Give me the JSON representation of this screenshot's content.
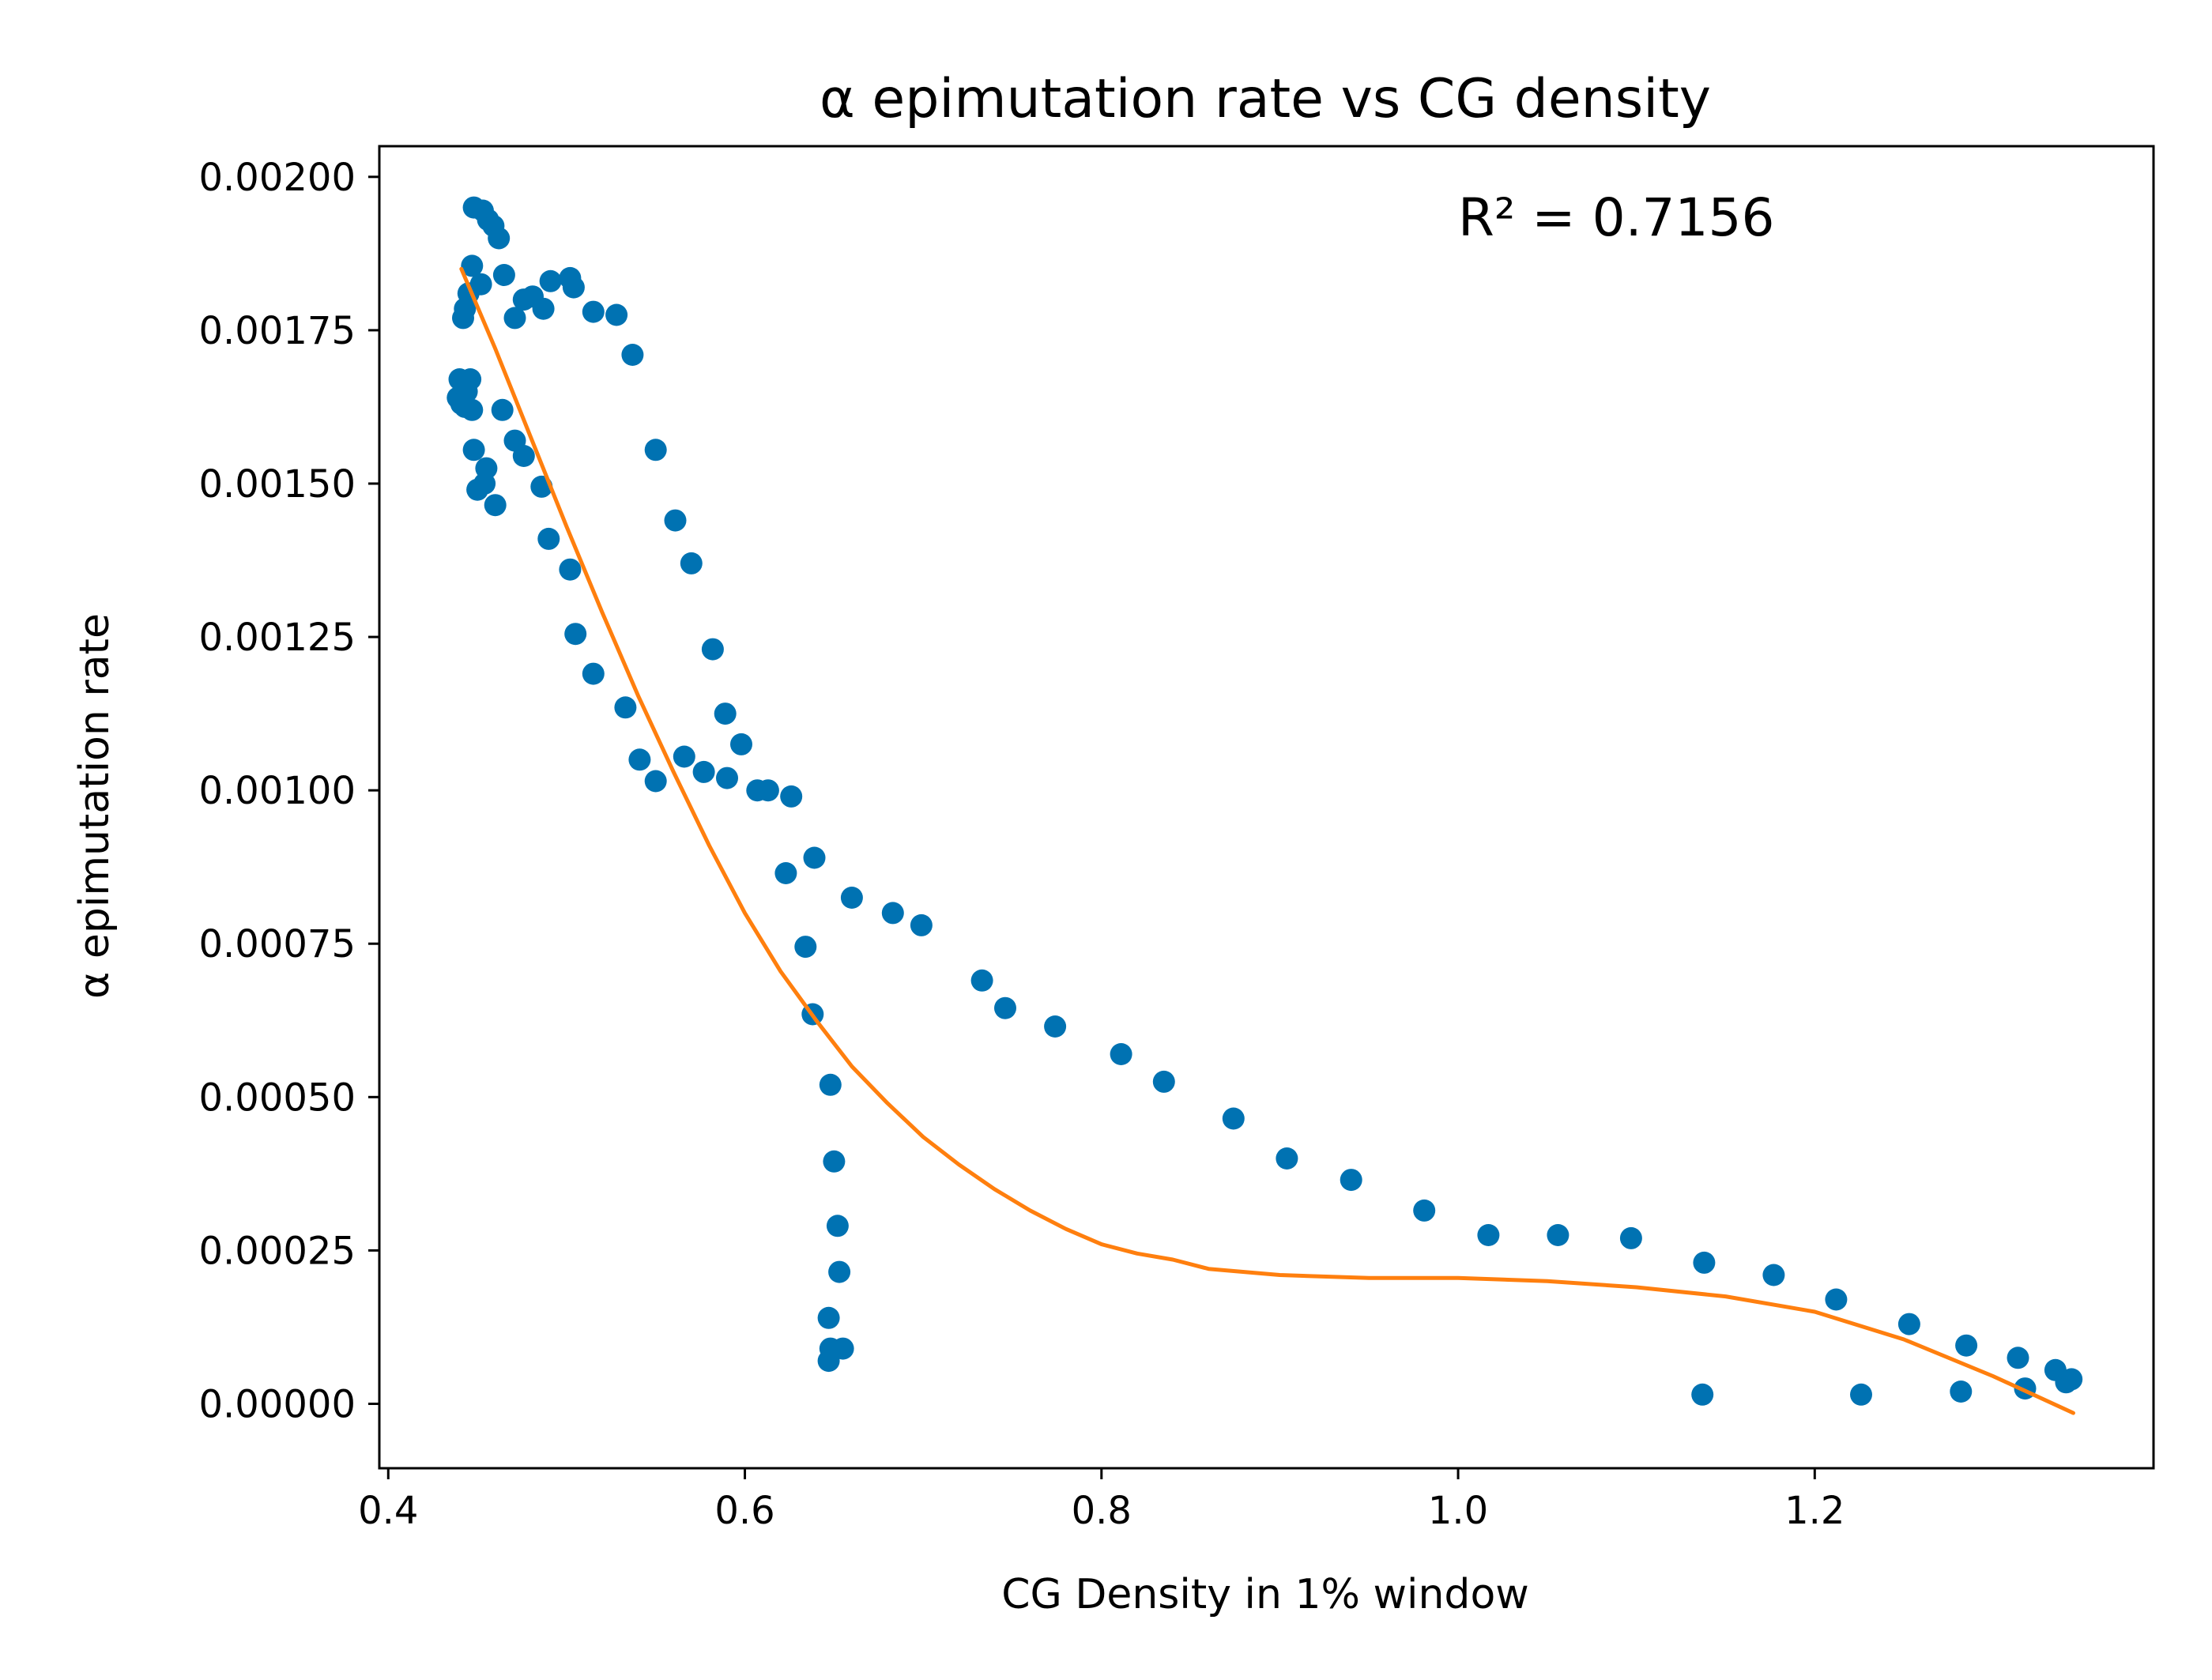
{
  "chart_data": {
    "type": "scatter",
    "title": "α epimutation rate vs CG density",
    "xlabel": "CG Density in 1% window",
    "ylabel": "α epimutation rate",
    "annotation": "R² = 0.7156",
    "xlim": [
      0.395,
      1.39
    ],
    "ylim": [
      -0.000105,
      0.00205
    ],
    "x_ticks": [
      0.4,
      0.6,
      0.8,
      1.0,
      1.2
    ],
    "x_tick_labels": [
      "0.4",
      "0.6",
      "0.8",
      "1.0",
      "1.2"
    ],
    "y_ticks": [
      0,
      0.00025,
      0.0005,
      0.00075,
      0.001,
      0.00125,
      0.0015,
      0.00175,
      0.002
    ],
    "y_tick_labels": [
      "0.00000",
      "0.00025",
      "0.00050",
      "0.00075",
      "0.00100",
      "0.00125",
      "0.00150",
      "0.00175",
      "0.00200"
    ],
    "grid": false,
    "colors": {
      "points": "#0072b2",
      "fit": "#ff7f0e"
    },
    "series": [
      {
        "kind": "scatter",
        "points": [
          [
            0.448,
            0.00195
          ],
          [
            0.453,
            0.001945
          ],
          [
            0.456,
            0.00193
          ],
          [
            0.459,
            0.00192
          ],
          [
            0.462,
            0.0019
          ],
          [
            0.447,
            0.001855
          ],
          [
            0.452,
            0.001825
          ],
          [
            0.465,
            0.00184
          ],
          [
            0.445,
            0.00181
          ],
          [
            0.443,
            0.001785
          ],
          [
            0.442,
            0.00177
          ],
          [
            0.471,
            0.00177
          ],
          [
            0.476,
            0.0018
          ],
          [
            0.481,
            0.001805
          ],
          [
            0.487,
            0.001785
          ],
          [
            0.491,
            0.00183
          ],
          [
            0.502,
            0.001835
          ],
          [
            0.504,
            0.00182
          ],
          [
            0.515,
            0.00178
          ],
          [
            0.528,
            0.001775
          ],
          [
            0.537,
            0.00171
          ],
          [
            0.44,
            0.00167
          ],
          [
            0.446,
            0.00167
          ],
          [
            0.444,
            0.00165
          ],
          [
            0.439,
            0.00164
          ],
          [
            0.441,
            0.00163
          ],
          [
            0.443,
            0.001625
          ],
          [
            0.447,
            0.00162
          ],
          [
            0.464,
            0.00162
          ],
          [
            0.471,
            0.00157
          ],
          [
            0.476,
            0.001545
          ],
          [
            0.448,
            0.001555
          ],
          [
            0.455,
            0.001525
          ],
          [
            0.45,
            0.00149
          ],
          [
            0.454,
            0.0015
          ],
          [
            0.46,
            0.001465
          ],
          [
            0.486,
            0.001495
          ],
          [
            0.49,
            0.00141
          ],
          [
            0.502,
            0.00136
          ],
          [
            0.55,
            0.001555
          ],
          [
            0.561,
            0.00144
          ],
          [
            0.57,
            0.00137
          ],
          [
            0.582,
            0.00123
          ],
          [
            0.505,
            0.001255
          ],
          [
            0.515,
            0.00119
          ],
          [
            0.533,
            0.001135
          ],
          [
            0.541,
            0.00105
          ],
          [
            0.55,
            0.001015
          ],
          [
            0.566,
            0.001055
          ],
          [
            0.577,
            0.00103
          ],
          [
            0.589,
            0.001125
          ],
          [
            0.59,
            0.00102
          ],
          [
            0.598,
            0.001075
          ],
          [
            0.607,
            0.001
          ],
          [
            0.613,
            0.001
          ],
          [
            0.626,
            0.00099
          ],
          [
            0.623,
            0.000865
          ],
          [
            0.639,
            0.00089
          ],
          [
            0.66,
            0.000825
          ],
          [
            0.683,
            0.0008
          ],
          [
            0.699,
            0.00078
          ],
          [
            0.634,
            0.000745
          ],
          [
            0.638,
            0.000635
          ],
          [
            0.648,
            0.00052
          ],
          [
            0.65,
            0.000395
          ],
          [
            0.652,
            0.00029
          ],
          [
            0.653,
            0.000215
          ],
          [
            0.647,
            0.00014
          ],
          [
            0.648,
            9e-05
          ],
          [
            0.655,
            9e-05
          ],
          [
            0.647,
            7e-05
          ],
          [
            0.733,
            0.00069
          ],
          [
            0.746,
            0.000645
          ],
          [
            0.774,
            0.000615
          ],
          [
            0.811,
            0.00057
          ],
          [
            0.835,
            0.000525
          ],
          [
            0.874,
            0.000465
          ],
          [
            0.904,
            0.0004
          ],
          [
            0.94,
            0.000365
          ],
          [
            0.981,
            0.000315
          ],
          [
            1.017,
            0.000275
          ],
          [
            1.056,
            0.000275
          ],
          [
            1.097,
            0.00027
          ],
          [
            1.138,
            0.00023
          ],
          [
            1.177,
            0.00021
          ],
          [
            1.212,
            0.00017
          ],
          [
            1.253,
            0.00013
          ],
          [
            1.285,
            9.5e-05
          ],
          [
            1.314,
            7.5e-05
          ],
          [
            1.335,
            5.5e-05
          ],
          [
            1.341,
            3.5e-05
          ],
          [
            1.344,
            4e-05
          ],
          [
            1.137,
            1.5e-05
          ],
          [
            1.226,
            1.5e-05
          ],
          [
            1.282,
            2e-05
          ],
          [
            1.318,
            2.5e-05
          ]
        ]
      },
      {
        "kind": "line",
        "points": [
          [
            0.441,
            0.00185
          ],
          [
            0.46,
            0.00172
          ],
          [
            0.48,
            0.001575
          ],
          [
            0.5,
            0.00143
          ],
          [
            0.52,
            0.00129
          ],
          [
            0.54,
            0.001155
          ],
          [
            0.56,
            0.00103
          ],
          [
            0.58,
            0.00091
          ],
          [
            0.6,
            0.0008
          ],
          [
            0.62,
            0.000705
          ],
          [
            0.64,
            0.000625
          ],
          [
            0.66,
            0.00055
          ],
          [
            0.68,
            0.00049
          ],
          [
            0.7,
            0.000435
          ],
          [
            0.72,
            0.00039
          ],
          [
            0.74,
            0.00035
          ],
          [
            0.76,
            0.000315
          ],
          [
            0.78,
            0.000285
          ],
          [
            0.8,
            0.00026
          ],
          [
            0.82,
            0.000245
          ],
          [
            0.84,
            0.000235
          ],
          [
            0.86,
            0.00022
          ],
          [
            0.88,
            0.000215
          ],
          [
            0.9,
            0.00021
          ],
          [
            0.95,
            0.000205
          ],
          [
            1.0,
            0.000205
          ],
          [
            1.05,
            0.0002
          ],
          [
            1.1,
            0.00019
          ],
          [
            1.15,
            0.000175
          ],
          [
            1.2,
            0.00015
          ],
          [
            1.25,
            0.000105
          ],
          [
            1.3,
            4.5e-05
          ],
          [
            1.345,
            -1.5e-05
          ]
        ]
      }
    ]
  }
}
